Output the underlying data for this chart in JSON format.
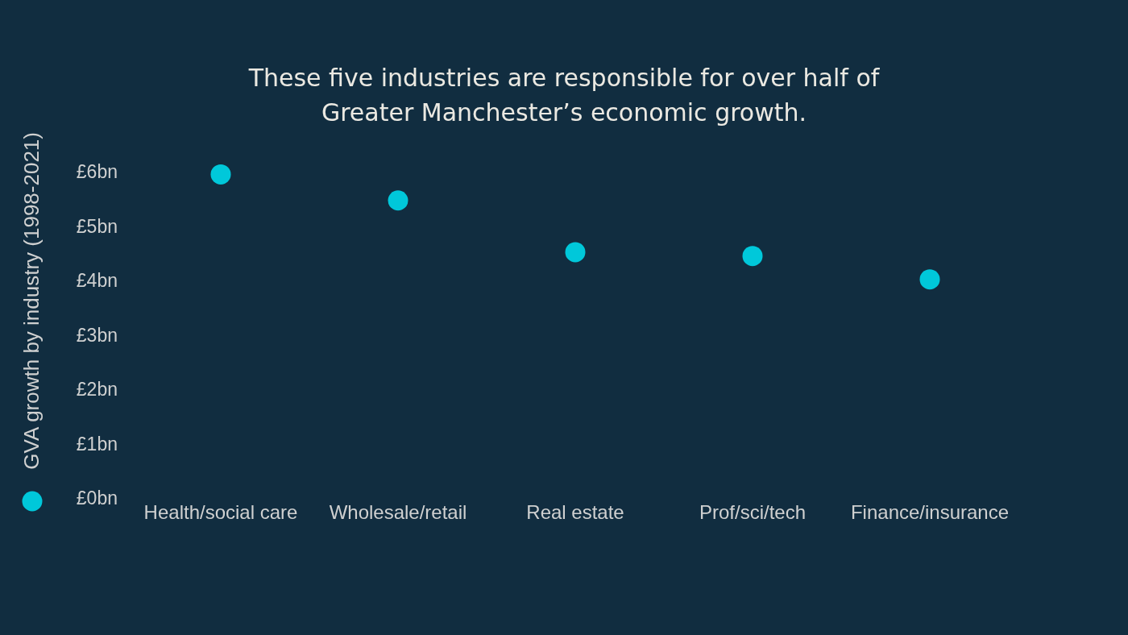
{
  "chart_data": {
    "type": "scatter",
    "title": "These five industries are responsible for over half of Greater Manchester’s economic growth.",
    "categories": [
      "Health/social care",
      "Wholesale/retail",
      "Real estate",
      "Prof/sci/tech",
      "Finance/insurance"
    ],
    "series": [
      {
        "name": "GVA growth by industry (1998-2021)",
        "color": "#00c8da",
        "values": [
          5.95,
          5.47,
          4.52,
          4.45,
          4.02
        ]
      }
    ],
    "ylim": [
      0,
      6
    ],
    "yticks": [
      {
        "value": 0,
        "label": "£0bn"
      },
      {
        "value": 1,
        "label": "£1bn"
      },
      {
        "value": 2,
        "label": "£2bn"
      },
      {
        "value": 3,
        "label": "£3bn"
      },
      {
        "value": 4,
        "label": "£4bn"
      },
      {
        "value": 5,
        "label": "£5bn"
      },
      {
        "value": 6,
        "label": "£6bn"
      }
    ],
    "legend": "left",
    "marker": "circle"
  }
}
